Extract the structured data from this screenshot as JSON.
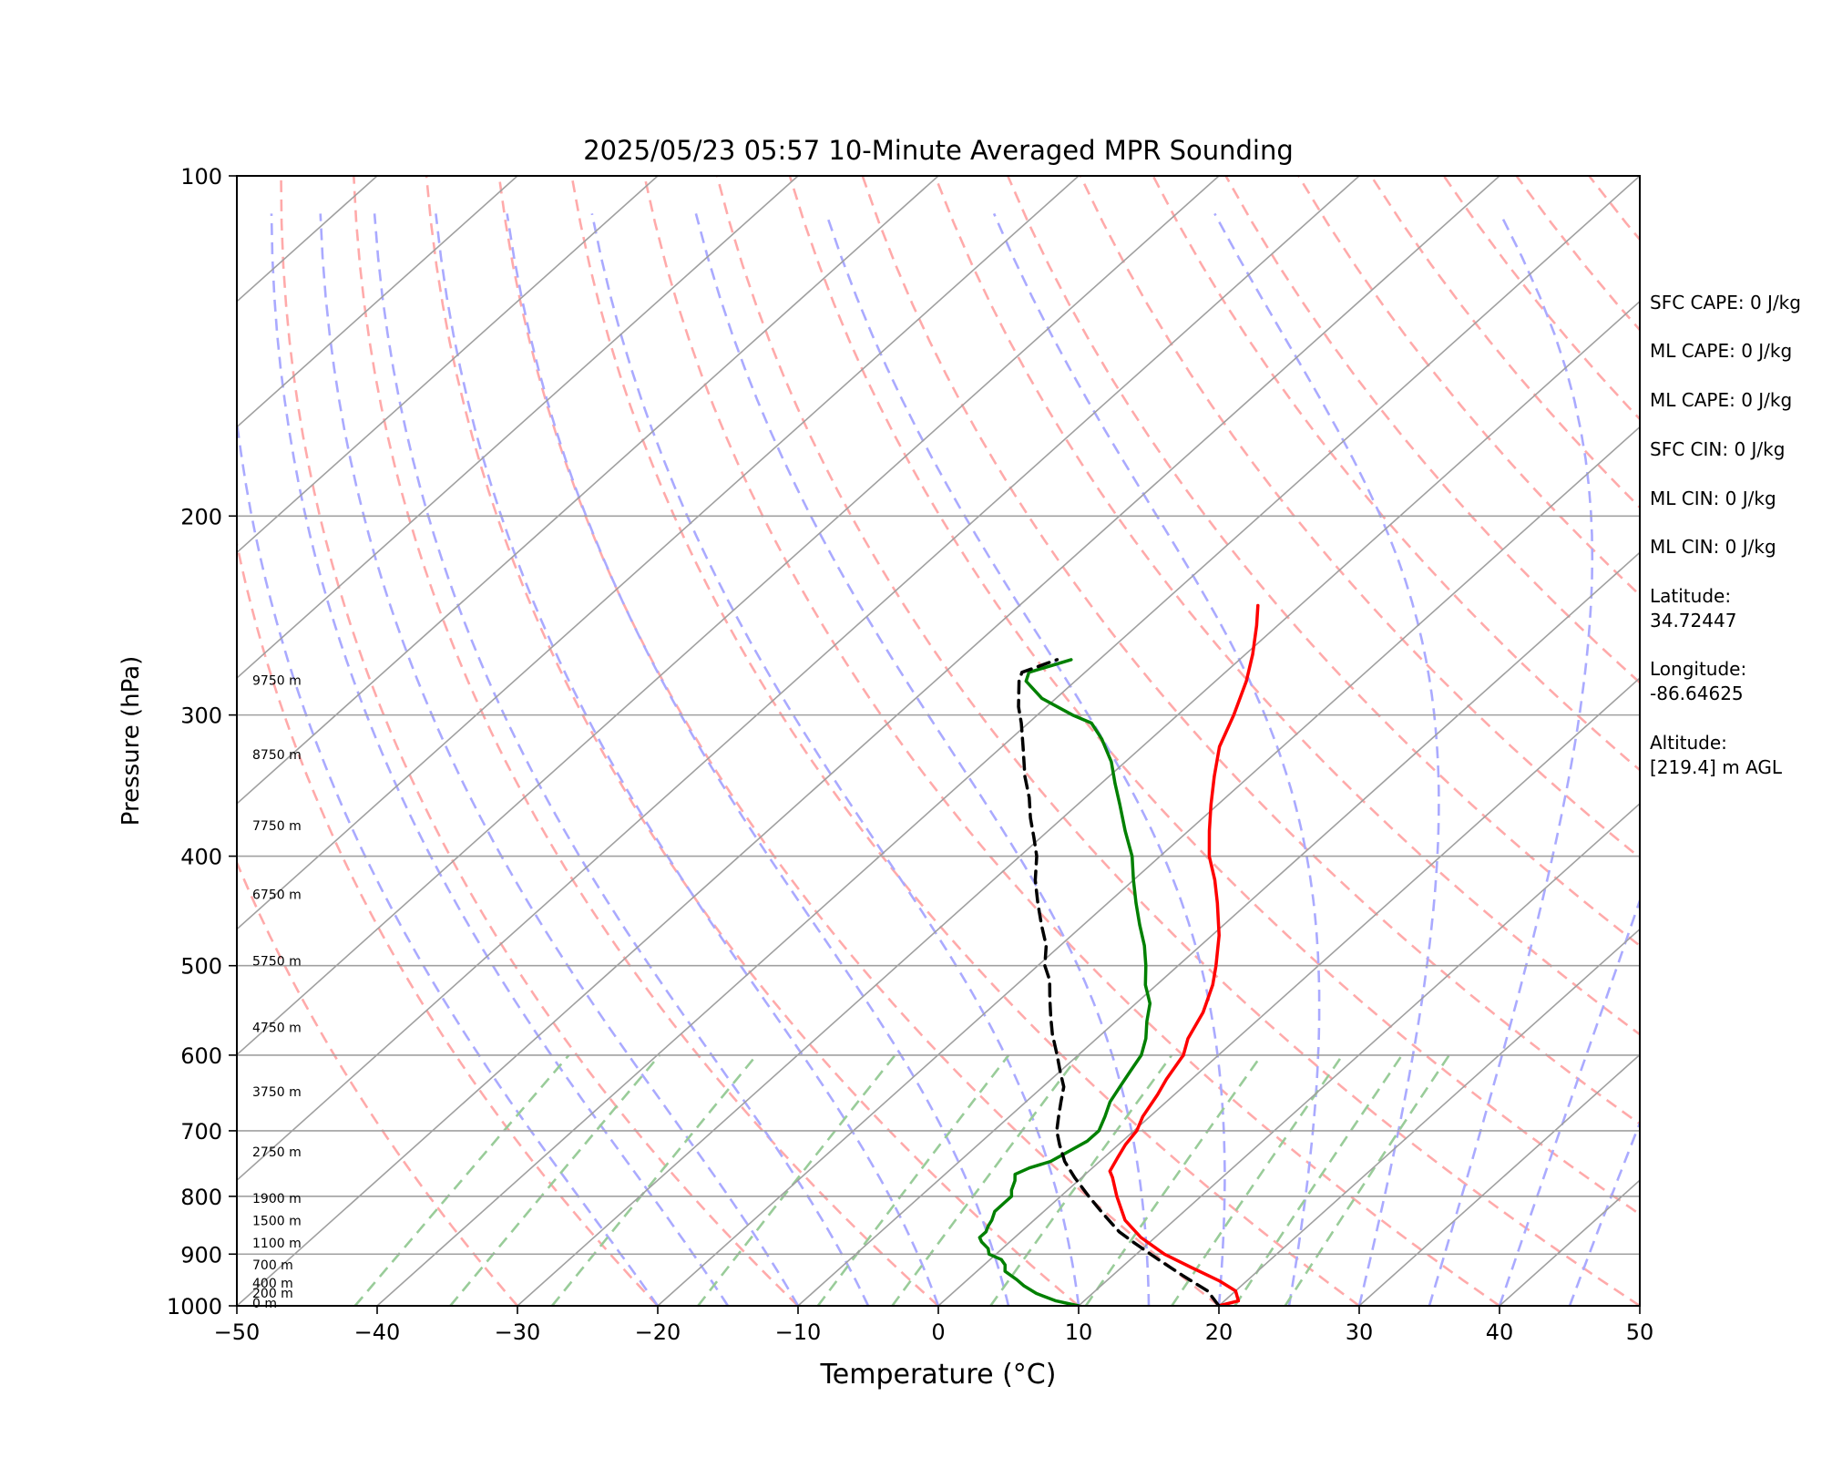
{
  "chart_data": {
    "type": "line",
    "title": "2025/05/23 05:57 10-Minute Averaged MPR Sounding",
    "xlabel": "Temperature (°C)",
    "ylabel": "Pressure (hPa)",
    "xlim": [
      -50,
      50
    ],
    "ylim": [
      1000,
      100
    ],
    "y_scale": "log",
    "grid": true,
    "x_ticks": [
      "−50",
      "−40",
      "−30",
      "−20",
      "−10",
      "0",
      "10",
      "20",
      "30",
      "40",
      "50"
    ],
    "y_ticks": [
      "1000",
      "900",
      "800",
      "700",
      "600",
      "500",
      "400",
      "300",
      "200",
      "100"
    ],
    "x_tick_values": [
      -50,
      -40,
      -30,
      -20,
      -10,
      0,
      10,
      20,
      30,
      40,
      50
    ],
    "y_tick_values": [
      1000,
      900,
      800,
      700,
      600,
      500,
      400,
      300,
      200,
      100
    ],
    "height_labels": [
      {
        "text": "0 m",
        "p": 1000
      },
      {
        "text": "200 m",
        "p": 980
      },
      {
        "text": "400 m",
        "p": 960
      },
      {
        "text": "700 m",
        "p": 925
      },
      {
        "text": "1100 m",
        "p": 885
      },
      {
        "text": "1500 m",
        "p": 845
      },
      {
        "text": "1900 m",
        "p": 808
      },
      {
        "text": "2750 m",
        "p": 735
      },
      {
        "text": "3750 m",
        "p": 650
      },
      {
        "text": "4750 m",
        "p": 570
      },
      {
        "text": "5750 m",
        "p": 498
      },
      {
        "text": "6750 m",
        "p": 435
      },
      {
        "text": "7750 m",
        "p": 378
      },
      {
        "text": "8750 m",
        "p": 327
      },
      {
        "text": "9750 m",
        "p": 281
      }
    ],
    "series": [
      {
        "color": "#ff0000",
        "points": [
          [
            20.0,
            1000
          ],
          [
            21.0,
            990
          ],
          [
            20.0,
            970
          ],
          [
            18.0,
            950
          ],
          [
            15.0,
            925
          ],
          [
            12.0,
            900
          ],
          [
            9.0,
            870
          ],
          [
            6.5,
            840
          ],
          [
            4.0,
            800
          ],
          [
            2.2,
            770
          ],
          [
            1.5,
            760
          ],
          [
            1.0,
            740
          ],
          [
            0.5,
            720
          ],
          [
            0.2,
            700
          ],
          [
            -0.5,
            680
          ],
          [
            -1.2,
            650
          ],
          [
            -1.8,
            630
          ],
          [
            -2.5,
            600
          ],
          [
            -3.5,
            580
          ],
          [
            -4.5,
            550
          ],
          [
            -6.0,
            520
          ],
          [
            -7.3,
            500
          ],
          [
            -9.5,
            470
          ],
          [
            -12.2,
            440
          ],
          [
            -14.2,
            420
          ],
          [
            -16.5,
            400
          ],
          [
            -18.5,
            380
          ],
          [
            -20.5,
            360
          ],
          [
            -22.5,
            340
          ],
          [
            -24.5,
            320
          ],
          [
            -26.0,
            300
          ],
          [
            -27.8,
            280
          ],
          [
            -29.5,
            265
          ],
          [
            -31.5,
            250
          ],
          [
            -33.0,
            240
          ]
        ]
      },
      {
        "color": "#008000",
        "points": [
          [
            10.0,
            1000
          ],
          [
            8.0,
            990
          ],
          [
            6.0,
            975
          ],
          [
            4.5,
            960
          ],
          [
            3.5,
            948
          ],
          [
            2.0,
            932
          ],
          [
            1.5,
            920
          ],
          [
            0.8,
            910
          ],
          [
            -0.5,
            900
          ],
          [
            -1.0,
            890
          ],
          [
            -2.0,
            878
          ],
          [
            -2.5,
            870
          ],
          [
            -2.5,
            860
          ],
          [
            -2.8,
            850
          ],
          [
            -3.0,
            840
          ],
          [
            -3.5,
            825
          ],
          [
            -3.5,
            810
          ],
          [
            -3.5,
            800
          ],
          [
            -4.0,
            790
          ],
          [
            -4.5,
            775
          ],
          [
            -5.0,
            765
          ],
          [
            -4.5,
            755
          ],
          [
            -3.5,
            745
          ],
          [
            -3.0,
            730
          ],
          [
            -2.5,
            715
          ],
          [
            -2.5,
            700
          ],
          [
            -3.2,
            680
          ],
          [
            -4.0,
            660
          ],
          [
            -4.5,
            640
          ],
          [
            -5.0,
            620
          ],
          [
            -5.5,
            600
          ],
          [
            -6.5,
            580
          ],
          [
            -7.8,
            560
          ],
          [
            -9.0,
            540
          ],
          [
            -10.8,
            520
          ],
          [
            -12.3,
            500
          ],
          [
            -14.0,
            480
          ],
          [
            -16.0,
            460
          ],
          [
            -18.0,
            440
          ],
          [
            -20.0,
            420
          ],
          [
            -22.0,
            400
          ],
          [
            -24.5,
            380
          ],
          [
            -27.0,
            360
          ],
          [
            -29.0,
            345
          ],
          [
            -31.0,
            330
          ],
          [
            -33.5,
            315
          ],
          [
            -35.5,
            305
          ],
          [
            -37.5,
            300
          ],
          [
            -41.0,
            290
          ],
          [
            -43.5,
            280
          ],
          [
            -44.0,
            275
          ],
          [
            -42.0,
            268
          ]
        ]
      },
      {
        "color": "#000000",
        "dashed": true,
        "points": [
          [
            20.0,
            1000
          ],
          [
            18.0,
            970
          ],
          [
            15.0,
            940
          ],
          [
            12.0,
            910
          ],
          [
            9.0,
            880
          ],
          [
            7.0,
            860
          ],
          [
            4.5,
            830
          ],
          [
            2.0,
            800
          ],
          [
            -0.5,
            770
          ],
          [
            -2.5,
            745
          ],
          [
            -4.2,
            720
          ],
          [
            -5.5,
            700
          ],
          [
            -6.5,
            680
          ],
          [
            -7.5,
            660
          ],
          [
            -8.5,
            640
          ],
          [
            -10.0,
            620
          ],
          [
            -11.5,
            600
          ],
          [
            -13.5,
            575
          ],
          [
            -15.0,
            555
          ],
          [
            -16.5,
            535
          ],
          [
            -18.0,
            515
          ],
          [
            -19.5,
            500
          ],
          [
            -21.0,
            480
          ],
          [
            -23.0,
            460
          ],
          [
            -25.0,
            440
          ],
          [
            -27.0,
            420
          ],
          [
            -28.8,
            400
          ],
          [
            -30.5,
            385
          ],
          [
            -32.3,
            370
          ],
          [
            -34.0,
            355
          ],
          [
            -36.0,
            340
          ],
          [
            -38.5,
            320
          ],
          [
            -40.5,
            305
          ],
          [
            -42.0,
            295
          ],
          [
            -44.0,
            280
          ],
          [
            -44.5,
            275
          ],
          [
            -43.0,
            268
          ]
        ]
      }
    ],
    "annotations": [
      "SFC CAPE: 0 J/kg",
      "ML CAPE: 0 J/kg",
      "ML CAPE: 0 J/kg",
      "SFC CIN: 0 J/kg",
      "ML CIN: 0 J/kg",
      "ML CIN: 0 J/kg",
      "Latitude:",
      "34.72447",
      "Longitude:",
      "-86.64625",
      "Altitude:",
      "[219.4] m AGL"
    ],
    "colors": {
      "isotherm": "#a0a0a0",
      "dry_adiabat": "#ffaaaa",
      "moist_adiabat": "#aaaaff",
      "mixing_ratio": "#99cc99"
    }
  },
  "info": [
    "SFC CAPE: 0 J/kg",
    "ML CAPE: 0 J/kg",
    "ML CAPE: 0 J/kg",
    "SFC CIN: 0 J/kg",
    "ML CIN: 0 J/kg",
    "ML CIN: 0 J/kg"
  ],
  "location": {
    "lat_label": "Latitude:",
    "lat": "34.72447",
    "lon_label": "Longitude:",
    "lon": "-86.64625",
    "alt_label": "Altitude:",
    "alt": "[219.4] m AGL"
  }
}
